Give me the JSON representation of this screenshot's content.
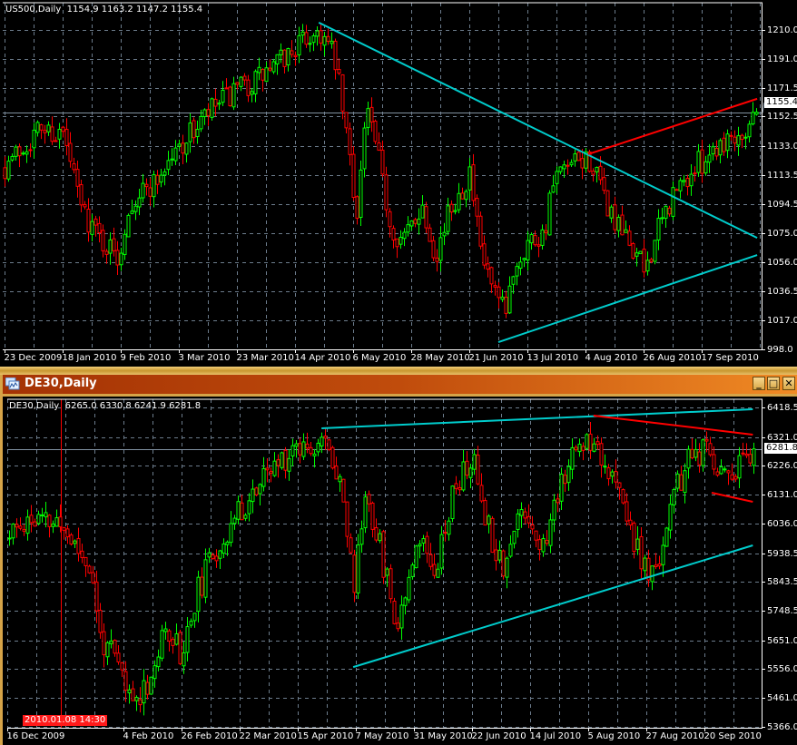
{
  "colors": {
    "background": "#000000",
    "grid": "#6c7c8c",
    "frame": "#ffffff",
    "bull": "#00ff00",
    "bear": "#ff0000",
    "trend_cyan": "#00cccc",
    "trend_red": "#ff0000",
    "current_line": "#8090a0"
  },
  "top_chart": {
    "info": {
      "symbol": "US500,Daily",
      "ohlc": "1154.9 1163.2 1147.2 1155.4"
    },
    "current_price": "1155.4",
    "chart_data": {
      "type": "candlestick",
      "price_ticks": [
        "1210.0",
        "1191.0",
        "1171.5",
        "1152.5",
        "1133.0",
        "1113.5",
        "1094.5",
        "1075.0",
        "1056.0",
        "1036.5",
        "1017.0",
        "998.0"
      ],
      "time_ticks": [
        {
          "label": "23 Dec 2009",
          "date": "2009-12-23"
        },
        {
          "label": "18 Jan 2010",
          "date": "2010-01-18"
        },
        {
          "label": "9 Feb 2010",
          "date": "2010-02-09"
        },
        {
          "label": "3 Mar 2010",
          "date": "2010-03-03"
        },
        {
          "label": "23 Mar 2010",
          "date": "2010-03-23"
        },
        {
          "label": "14 Apr 2010",
          "date": "2010-04-14"
        },
        {
          "label": "6 May 2010",
          "date": "2010-05-06"
        },
        {
          "label": "28 May 2010",
          "date": "2010-05-28"
        },
        {
          "label": "21 Jun 2010",
          "date": "2010-06-21"
        },
        {
          "label": "13 Jul 2010",
          "date": "2010-07-13"
        },
        {
          "label": "4 Aug 2010",
          "date": "2010-08-04"
        },
        {
          "label": "26 Aug 2010",
          "date": "2010-08-26"
        },
        {
          "label": "17 Sep 2010",
          "date": "2010-09-17"
        }
      ],
      "close_path": [
        [
          "2009-12-23",
          1120
        ],
        [
          "2010-01-08",
          1145
        ],
        [
          "2010-01-18",
          1140
        ],
        [
          "2010-01-25",
          1092
        ],
        [
          "2010-02-01",
          1072
        ],
        [
          "2010-02-08",
          1058
        ],
        [
          "2010-02-12",
          1095
        ],
        [
          "2010-02-22",
          1110
        ],
        [
          "2010-03-04",
          1135
        ],
        [
          "2010-03-16",
          1160
        ],
        [
          "2010-03-26",
          1172
        ],
        [
          "2010-04-06",
          1185
        ],
        [
          "2010-04-15",
          1200
        ],
        [
          "2010-04-23",
          1210
        ],
        [
          "2010-04-29",
          1190
        ],
        [
          "2010-05-05",
          1120
        ],
        [
          "2010-05-07",
          1085
        ],
        [
          "2010-05-11",
          1160
        ],
        [
          "2010-05-17",
          1110
        ],
        [
          "2010-05-20",
          1080
        ],
        [
          "2010-05-25",
          1070
        ],
        [
          "2010-06-01",
          1095
        ],
        [
          "2010-06-07",
          1062
        ],
        [
          "2010-06-14",
          1095
        ],
        [
          "2010-06-21",
          1115
        ],
        [
          "2010-06-25",
          1062
        ],
        [
          "2010-07-01",
          1030
        ],
        [
          "2010-07-05",
          1020
        ],
        [
          "2010-07-07",
          1050
        ],
        [
          "2010-07-13",
          1070
        ],
        [
          "2010-07-19",
          1075
        ],
        [
          "2010-07-23",
          1110
        ],
        [
          "2010-07-29",
          1118
        ],
        [
          "2010-08-05",
          1125
        ],
        [
          "2010-08-11",
          1098
        ],
        [
          "2010-08-16",
          1078
        ],
        [
          "2010-08-23",
          1062
        ],
        [
          "2010-08-26",
          1050
        ],
        [
          "2010-08-30",
          1070
        ],
        [
          "2010-09-06",
          1100
        ],
        [
          "2010-09-13",
          1115
        ],
        [
          "2010-09-20",
          1130
        ],
        [
          "2010-09-27",
          1140
        ],
        [
          "2010-10-04",
          1145
        ],
        [
          "2010-10-07",
          1155.4
        ]
      ],
      "trendlines": [
        {
          "color": "cyan",
          "from": [
            "2010-04-23",
            1214.9
          ],
          "to": [
            "2010-10-08",
            1072.0
          ]
        },
        {
          "color": "cyan",
          "from": [
            "2010-07-02",
            1002.8
          ],
          "to": [
            "2010-10-08",
            1060.6
          ]
        },
        {
          "color": "red",
          "from": [
            "2010-08-05",
            1127.5
          ],
          "to": [
            "2010-10-08",
            1164.3
          ]
        }
      ]
    }
  },
  "bottom_window": {
    "title": "DE30,Daily",
    "buttons": {
      "minimize": "_",
      "maximize": "□",
      "close": "✕"
    },
    "icon": "chart-window-icon"
  },
  "bottom_chart": {
    "info": {
      "symbol": "DE30,Daily",
      "ohlc": "6265.0 6330.8 6241.9 6281.8"
    },
    "current_price": "6281.8",
    "date_marker": "2010.01.08 14:30",
    "chart_data": {
      "type": "candlestick",
      "price_ticks": [
        "6418.5",
        "6321.0",
        "6226.0",
        "6131.0",
        "6036.0",
        "5938.5",
        "5843.5",
        "5748.5",
        "5651.0",
        "5556.0",
        "5461.0",
        "5366.0"
      ],
      "time_ticks": [
        {
          "label": "16 Dec 2009",
          "date": "2009-12-16"
        },
        {
          "label": "4 Feb 2010",
          "date": "2010-02-04"
        },
        {
          "label": "26 Feb 2010",
          "date": "2010-02-26"
        },
        {
          "label": "22 Mar 2010",
          "date": "2010-03-22"
        },
        {
          "label": "15 Apr 2010",
          "date": "2010-04-15"
        },
        {
          "label": "7 May 2010",
          "date": "2010-05-07"
        },
        {
          "label": "31 May 2010",
          "date": "2010-05-31"
        },
        {
          "label": "22 Jun 2010",
          "date": "2010-06-22"
        },
        {
          "label": "14 Jul 2010",
          "date": "2010-07-14"
        },
        {
          "label": "5 Aug 2010",
          "date": "2010-08-05"
        },
        {
          "label": "27 Aug 2010",
          "date": "2010-08-27"
        },
        {
          "label": "20 Sep 2010",
          "date": "2010-09-20"
        }
      ],
      "marker_date": "2010-01-08",
      "close_path": [
        [
          "2009-12-16",
          5980
        ],
        [
          "2009-12-24",
          6050
        ],
        [
          "2010-01-08",
          6030
        ],
        [
          "2010-01-20",
          5900
        ],
        [
          "2010-01-25",
          5660
        ],
        [
          "2010-02-02",
          5560
        ],
        [
          "2010-02-07",
          5440
        ],
        [
          "2010-02-14",
          5530
        ],
        [
          "2010-02-21",
          5700
        ],
        [
          "2010-02-26",
          5600
        ],
        [
          "2010-03-04",
          5800
        ],
        [
          "2010-03-12",
          5950
        ],
        [
          "2010-03-24",
          6100
        ],
        [
          "2010-04-05",
          6220
        ],
        [
          "2010-04-15",
          6300
        ],
        [
          "2010-04-24",
          6310
        ],
        [
          "2010-05-01",
          6200
        ],
        [
          "2010-05-06",
          5820
        ],
        [
          "2010-05-11",
          6150
        ],
        [
          "2010-05-17",
          5950
        ],
        [
          "2010-05-24",
          5700
        ],
        [
          "2010-06-01",
          6000
        ],
        [
          "2010-06-08",
          5900
        ],
        [
          "2010-06-15",
          6150
        ],
        [
          "2010-06-22",
          6250
        ],
        [
          "2010-06-29",
          6000
        ],
        [
          "2010-07-04",
          5900
        ],
        [
          "2010-07-11",
          6100
        ],
        [
          "2010-07-19",
          5950
        ],
        [
          "2010-07-26",
          6200
        ],
        [
          "2010-08-02",
          6300
        ],
        [
          "2010-08-07",
          6330
        ],
        [
          "2010-08-13",
          6200
        ],
        [
          "2010-08-20",
          6050
        ],
        [
          "2010-08-25",
          5900
        ],
        [
          "2010-08-30",
          5850
        ],
        [
          "2010-09-06",
          6100
        ],
        [
          "2010-09-14",
          6250
        ],
        [
          "2010-09-21",
          6270
        ],
        [
          "2010-09-28",
          6200
        ],
        [
          "2010-10-05",
          6230
        ],
        [
          "2010-10-08",
          6281.8
        ]
      ],
      "trendlines": [
        {
          "color": "cyan",
          "from": [
            "2010-04-24",
            6349.8
          ],
          "to": [
            "2010-10-10",
            6412.6
          ]
        },
        {
          "color": "red",
          "from": [
            "2010-08-07",
            6391.7
          ],
          "to": [
            "2010-10-10",
            6328.9
          ]
        },
        {
          "color": "red",
          "from": [
            "2010-09-23",
            6137.5
          ],
          "to": [
            "2010-10-10",
            6107.6
          ]
        },
        {
          "color": "cyan",
          "from": [
            "2010-05-06",
            5563.0
          ],
          "to": [
            "2010-10-10",
            5964.0
          ]
        }
      ]
    }
  }
}
